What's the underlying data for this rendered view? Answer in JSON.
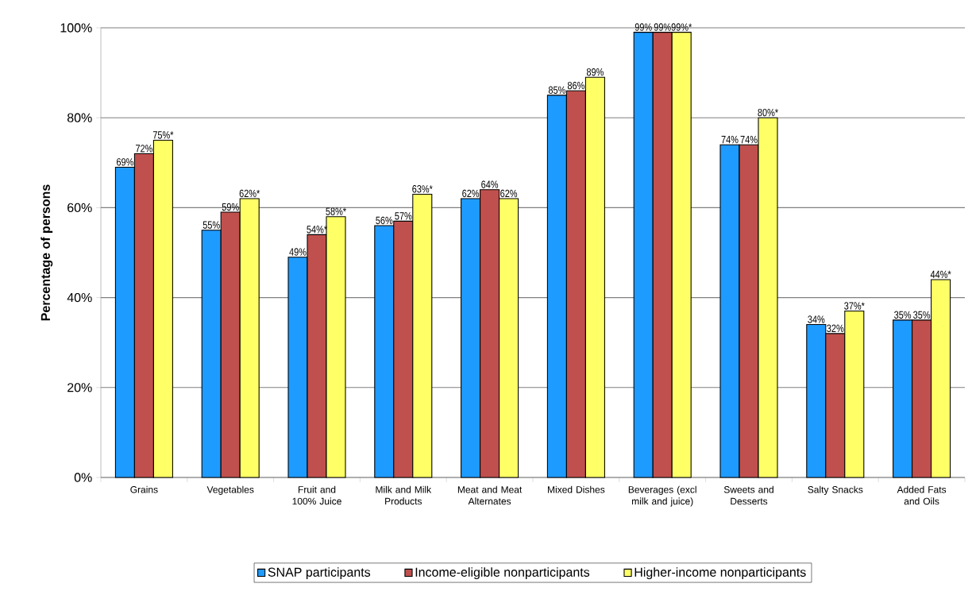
{
  "chart_data": {
    "type": "bar",
    "ylabel": "Percentage of persons",
    "categories": [
      "Grains",
      "Vegetables",
      "Fruit and 100% Juice",
      "Milk and Milk Products",
      "Meat and Meat Alternates",
      "Mixed Dishes",
      "Beverages (excl milk and juice)",
      "Sweets and Desserts",
      "Salty Snacks",
      "Added Fats and Oils"
    ],
    "series": [
      {
        "name": "SNAP participants",
        "color": "#1e9bff",
        "values": [
          69,
          55,
          49,
          56,
          62,
          85,
          99,
          74,
          34,
          35
        ],
        "value_labels": [
          "69%",
          "55%",
          "49%",
          "56%",
          "62%",
          "85%",
          "99%",
          "74%",
          "34%",
          "35%"
        ]
      },
      {
        "name": "Income-eligible nonparticipants",
        "color": "#c0504d",
        "values": [
          72,
          59,
          54,
          57,
          64,
          86,
          99,
          74,
          32,
          35
        ],
        "value_labels": [
          "72%",
          "59%",
          "54%*",
          "57%",
          "64%",
          "86%",
          "99%",
          "74%",
          "32%",
          "35%"
        ]
      },
      {
        "name": "Higher-income nonparticipants",
        "color": "#ffff66",
        "values": [
          75,
          62,
          58,
          63,
          62,
          89,
          99,
          80,
          37,
          44
        ],
        "value_labels": [
          "75%*",
          "62%*",
          "58%*",
          "63%*",
          "62%",
          "89%",
          "99%*",
          "80%*",
          "37%*",
          "44%*"
        ]
      }
    ],
    "ylim": [
      0,
      100
    ],
    "yticks": [
      {
        "value": 0,
        "label": "0%"
      },
      {
        "value": 20,
        "label": "20%"
      },
      {
        "value": 40,
        "label": "40%"
      },
      {
        "value": 60,
        "label": "60%"
      },
      {
        "value": 80,
        "label": "80%"
      },
      {
        "value": 100,
        "label": "100%"
      }
    ],
    "grid": "y",
    "legend": "bottom"
  }
}
